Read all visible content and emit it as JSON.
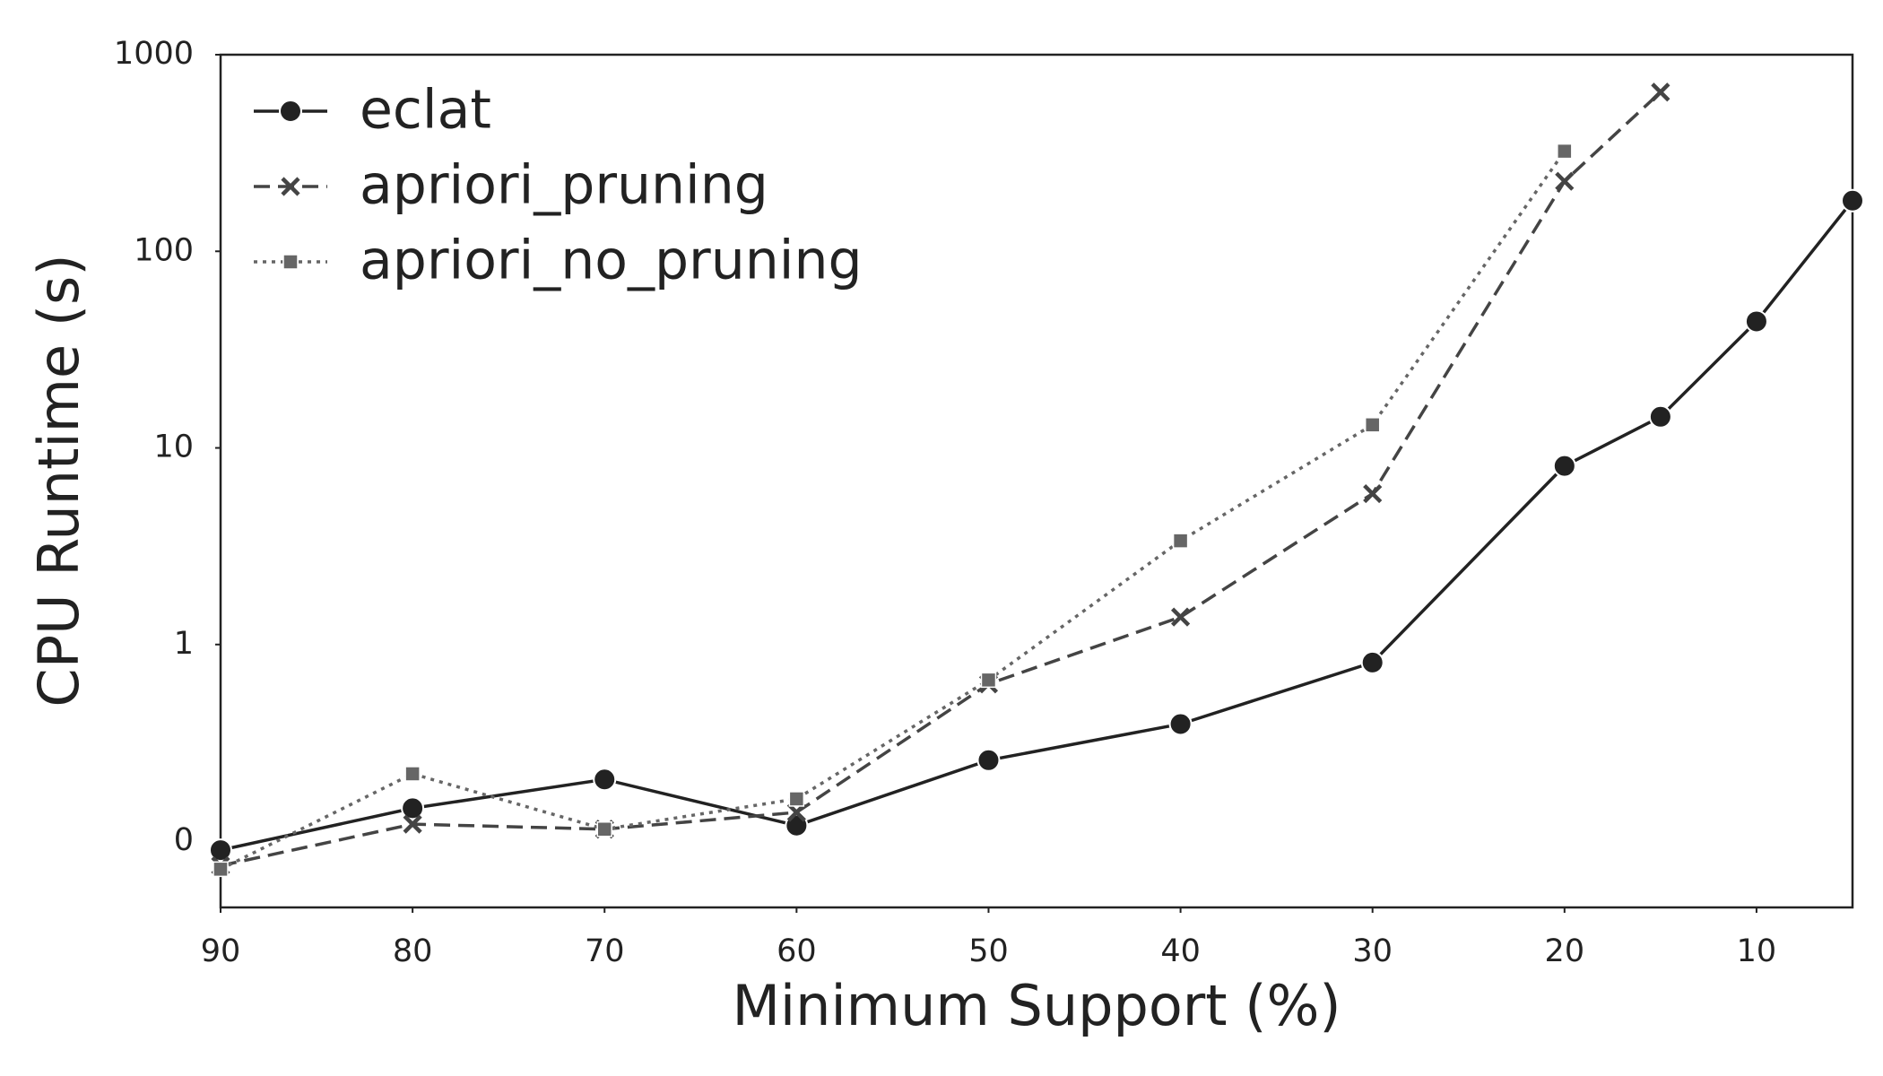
{
  "chart_data": {
    "type": "line",
    "x_label": "Minimum Support (%)",
    "y_label": "CPU Runtime (s)",
    "x": [
      90,
      80,
      70,
      60,
      50,
      40,
      30,
      20,
      15,
      10,
      5
    ],
    "xlim": [
      90,
      5
    ],
    "xticks": [
      90,
      80,
      70,
      60,
      50,
      40,
      30,
      20,
      10
    ],
    "ylim": [
      0.046,
      1000
    ],
    "yticks": [
      {
        "value": 0.1,
        "label": "0"
      },
      1,
      10,
      100,
      1000
    ],
    "log_y": true,
    "grid": false,
    "legend": "upper left",
    "series": [
      {
        "name": "eclat",
        "color": "#222222",
        "style": "solid",
        "marker": "o",
        "values": [
          0.09,
          0.147,
          0.206,
          0.12,
          0.258,
          0.394,
          0.81,
          8.1,
          14.4,
          44,
          181
        ]
      },
      {
        "name": "apriori_pruning",
        "color": "#444444",
        "style": "dashed",
        "marker": "x",
        "values": [
          0.075,
          0.122,
          0.115,
          0.14,
          0.63,
          1.38,
          5.85,
          227,
          645,
          null,
          null
        ]
      },
      {
        "name": "apriori_no_pruning",
        "color": "#666666",
        "style": "dotted",
        "marker": "s",
        "values": [
          0.072,
          0.22,
          0.115,
          0.164,
          0.66,
          3.37,
          13.1,
          323,
          null,
          null,
          null
        ]
      }
    ]
  }
}
